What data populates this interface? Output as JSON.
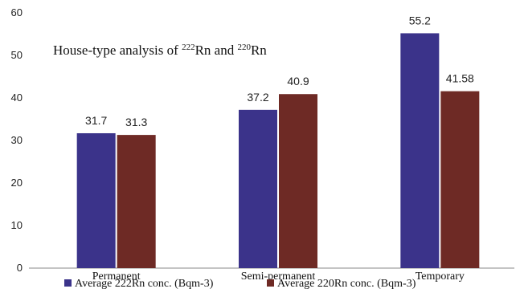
{
  "chart_data": {
    "type": "bar",
    "title_parts": [
      "House-type analysis of ",
      "222",
      "Rn and ",
      "220",
      "Rn"
    ],
    "categories": [
      "Permanent",
      "Semi-permanent",
      "Temporary"
    ],
    "series": [
      {
        "name": "Average 222Rn conc. (Bqm-3)",
        "values": [
          31.7,
          37.2,
          55.2
        ],
        "labels": [
          "31.7",
          "37.2",
          "55.2"
        ],
        "color": "#3b338a"
      },
      {
        "name": "Average 220Rn conc. (Bqm-3)",
        "values": [
          31.3,
          40.9,
          41.58
        ],
        "labels": [
          "31.3",
          "40.9",
          "41.58"
        ],
        "color": "#6e2a25"
      }
    ],
    "ylim": [
      0,
      60
    ],
    "yticks": [
      "0",
      "10",
      "20",
      "30",
      "40",
      "50",
      "60"
    ],
    "grid": false,
    "legend_position": "bottom"
  }
}
